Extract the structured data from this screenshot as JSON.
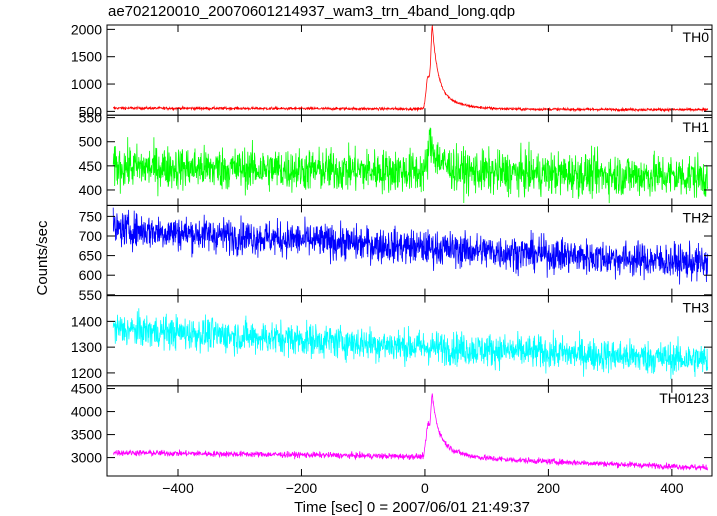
{
  "chart_data": {
    "type": "line",
    "title": "ae702120010_20070601214937_wam3_trn_4band_long.qdp",
    "xlabel": "Time [sec] 0 = 2007/06/01 21:49:37",
    "ylabel": "Counts/sec",
    "xlim": [
      -515,
      465
    ],
    "x_ticks": [
      -400,
      -200,
      0,
      200,
      400
    ],
    "x_tick_labels": [
      "−400",
      "−200",
      "0",
      "200",
      "400"
    ],
    "x_range_data": [
      -505,
      458
    ],
    "grid": false,
    "panels": [
      {
        "name": "TH0",
        "color": "#ff0000",
        "ylim": [
          430,
          2080
        ],
        "y_ticks": [
          500,
          1000,
          1500,
          2000
        ],
        "y_tick_labels": [
          "500",
          "1000",
          "1500",
          "2000"
        ],
        "baseline": [
          [
            -505,
            560
          ],
          [
            0,
            545
          ],
          [
            458,
            530
          ]
        ],
        "noise": 12,
        "peaks": [
          {
            "t": 5,
            "amp": 600,
            "rise": 3,
            "decay": 28
          },
          {
            "t": 12,
            "amp": 1050,
            "rise": 2,
            "decay": 8
          }
        ]
      },
      {
        "name": "TH1",
        "color": "#00ff00",
        "ylim": [
          368,
          555
        ],
        "y_ticks": [
          400,
          450,
          500,
          550
        ],
        "y_tick_labels": [
          "400",
          "450",
          "500",
          "550"
        ],
        "baseline": [
          [
            -505,
            448
          ],
          [
            0,
            438
          ],
          [
            458,
            428
          ]
        ],
        "noise": 22,
        "peaks": [
          {
            "t": 8,
            "amp": 60,
            "rise": 3,
            "decay": 18
          }
        ]
      },
      {
        "name": "TH2",
        "color": "#0000ff",
        "ylim": [
          548,
          778
        ],
        "y_ticks": [
          550,
          600,
          650,
          700,
          750
        ],
        "y_tick_labels": [
          "550",
          "600",
          "650",
          "700",
          "750"
        ],
        "baseline": [
          [
            -505,
            718
          ],
          [
            -200,
            690
          ],
          [
            0,
            670
          ],
          [
            458,
            630
          ]
        ],
        "noise": 22,
        "peaks": []
      },
      {
        "name": "TH3",
        "color": "#00ffff",
        "ylim": [
          1150,
          1500
        ],
        "y_ticks": [
          1200,
          1300,
          1400
        ],
        "y_tick_labels": [
          "1200",
          "1300",
          "1400"
        ],
        "baseline": [
          [
            -505,
            1370
          ],
          [
            -200,
            1330
          ],
          [
            0,
            1300
          ],
          [
            458,
            1250
          ]
        ],
        "noise": 32,
        "peaks": []
      },
      {
        "name": "TH0123",
        "color": "#ff00ff",
        "ylim": [
          2600,
          4560
        ],
        "y_ticks": [
          3000,
          3500,
          4000,
          4500
        ],
        "y_tick_labels": [
          "3000",
          "3500",
          "4000",
          "4500"
        ],
        "baseline": [
          [
            -505,
            3110
          ],
          [
            -200,
            3060
          ],
          [
            0,
            3020
          ],
          [
            458,
            2780
          ]
        ],
        "noise": 32,
        "peaks": [
          {
            "t": 5,
            "amp": 700,
            "rise": 3,
            "decay": 28
          },
          {
            "t": 12,
            "amp": 800,
            "rise": 2,
            "decay": 8
          }
        ]
      }
    ]
  }
}
